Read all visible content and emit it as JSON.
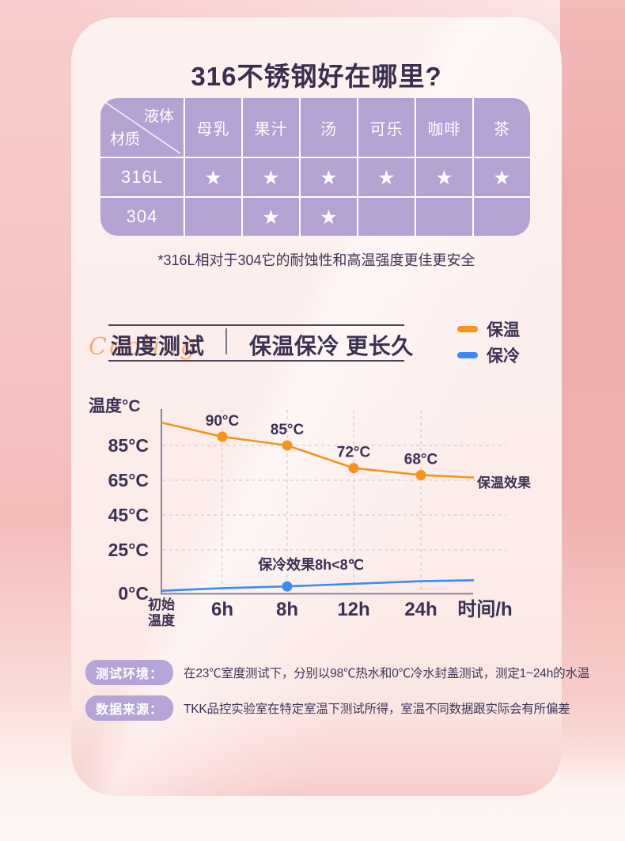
{
  "title": "316不锈钢好在哪里?",
  "table": {
    "corner": {
      "top_right": "液体",
      "bottom_left": "材质"
    },
    "columns": [
      "母乳",
      "果汁",
      "汤",
      "可乐",
      "咖啡",
      "茶"
    ],
    "rows": [
      {
        "material": "316L",
        "cells": [
          "★",
          "★",
          "★",
          "★",
          "★",
          "★"
        ]
      },
      {
        "material": "304",
        "cells": [
          "",
          "★",
          "★",
          "",
          "",
          ""
        ]
      }
    ],
    "footnote": "*316L相对于304它的耐蚀性和高温强度更佳更安全"
  },
  "section_header": {
    "left_title": "温度测试",
    "right_title": "保温保冷 更长久",
    "script_text": "Cooling"
  },
  "legend": [
    {
      "label": "保温",
      "color": "#f6941d"
    },
    {
      "label": "保冷",
      "color": "#3d8bf2"
    }
  ],
  "chart_data": {
    "type": "line",
    "x_categories": [
      "初始\n温度",
      "6h",
      "8h",
      "12h",
      "24h"
    ],
    "x_axis_label": "时间/h",
    "y_axis_label": "温度°C",
    "y_ticks": [
      "85°C",
      "65°C",
      "45°C",
      "25°C",
      "0°C"
    ],
    "y_tick_values": [
      85,
      65,
      45,
      25,
      0
    ],
    "ylim": [
      0,
      100
    ],
    "grid": true,
    "series": [
      {
        "name": "保温",
        "color": "#f6941d",
        "values": [
          98,
          90,
          85,
          72,
          68
        ],
        "point_labels": [
          null,
          "90°C",
          "85°C",
          "72°C",
          "68°C"
        ],
        "marker_indices": [
          1,
          2,
          3,
          4
        ],
        "end_label": "保温效果"
      },
      {
        "name": "保冷",
        "color": "#3d8bf2",
        "values": [
          1.5,
          3,
          4,
          5.5,
          7
        ],
        "point_labels": [
          null,
          null,
          null,
          null,
          null
        ],
        "marker_indices": [
          2
        ],
        "annotation": "保冷效果8h<8℃"
      }
    ]
  },
  "notes": [
    {
      "label": "测试环境：",
      "text": "在23℃室度测试下，分别以98℃热水和0℃冷水封盖测试，测定1~24h的水温"
    },
    {
      "label": "数据来源：",
      "text": "TKK品控实验室在特定室温下测试所得，室温不同数据跟实际会有所偏差"
    }
  ],
  "colors": {
    "warm_accent": "#f6941d",
    "cold_accent": "#3d8bf2",
    "table_purple": "#b3a2d2",
    "badge_purple": "#b5a4d5",
    "dark_text": "#3b3153",
    "card_pink": "#fcecea"
  }
}
